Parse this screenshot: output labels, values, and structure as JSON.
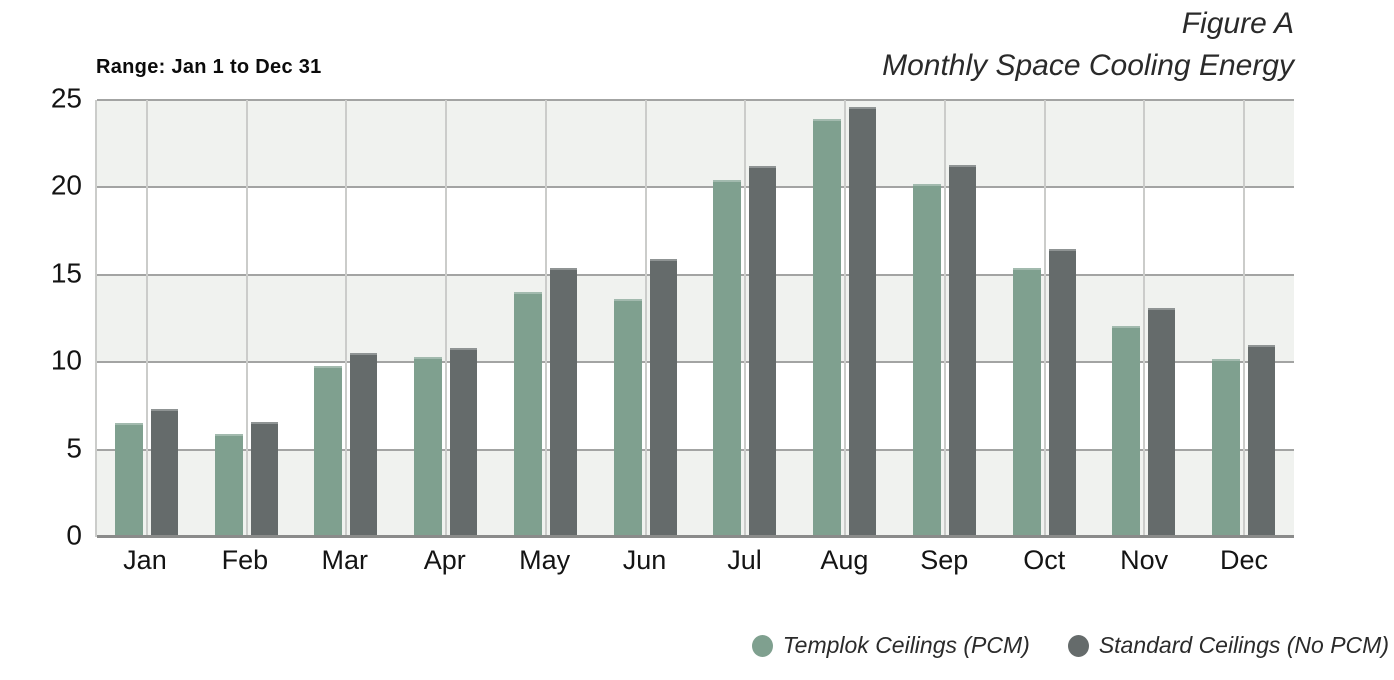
{
  "header": {
    "range_label": "Range: Jan 1 to Dec 31",
    "figure_label": "Figure A",
    "title": "Monthly Space Cooling Energy"
  },
  "chart_data": {
    "type": "bar",
    "title": "Monthly Space Cooling Energy",
    "subtitle": "Figure A",
    "annotation": "Range: Jan 1 to Dec 31",
    "categories": [
      "Jan",
      "Feb",
      "Mar",
      "Apr",
      "May",
      "Jun",
      "Jul",
      "Aug",
      "Sep",
      "Oct",
      "Nov",
      "Dec"
    ],
    "series": [
      {
        "name": "Templok Ceilings (PCM)",
        "color": "#7FA08F",
        "values": [
          6.5,
          5.9,
          9.8,
          10.3,
          14.0,
          13.6,
          20.4,
          23.9,
          20.2,
          15.4,
          12.1,
          10.2
        ]
      },
      {
        "name": "Standard Ceilings (No PCM)",
        "color": "#656B6B",
        "values": [
          7.3,
          6.6,
          10.5,
          10.8,
          15.4,
          15.9,
          21.2,
          24.6,
          21.3,
          16.5,
          13.1,
          11.0
        ]
      }
    ],
    "xlabel": "",
    "ylabel": "",
    "ylim": [
      0,
      25
    ],
    "yticks": [
      0,
      5,
      10,
      15,
      20,
      25
    ],
    "grid": "horizontal gridlines at yticks, vertical gridlines at month centers, alternating background bands",
    "legend_position": "bottom-right",
    "colors": {
      "band": "#F0F2EF",
      "band_alt": "#FFFFFF",
      "hgrid": "#A3A4A3",
      "vgrid": "#CBCCCA",
      "baseline": "#8A8B8A",
      "text": "#141414"
    }
  }
}
